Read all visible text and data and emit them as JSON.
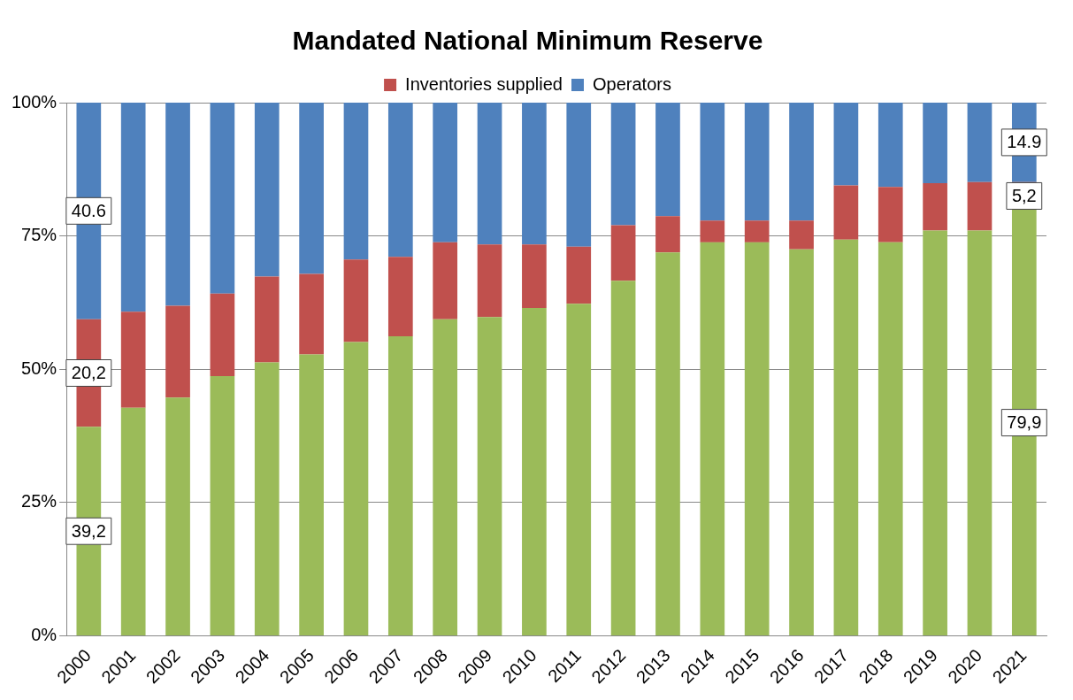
{
  "chart_data": {
    "type": "bar",
    "title": "Mandated National Minimum Reserve",
    "stacked": true,
    "legend": "top",
    "grid": "y",
    "categories": [
      "2000",
      "2001",
      "2002",
      "2003",
      "2004",
      "2005",
      "2006",
      "2007",
      "2008",
      "2009",
      "2010",
      "2011",
      "2012",
      "2013",
      "2014",
      "2015",
      "2016",
      "2017",
      "2018",
      "2019",
      "2020",
      "2021"
    ],
    "ylim": [
      0,
      100
    ],
    "yticks": [
      {
        "value": 0,
        "label": "0%"
      },
      {
        "value": 25,
        "label": "25%"
      },
      {
        "value": 50,
        "label": "50%"
      },
      {
        "value": 75,
        "label": "75%"
      },
      {
        "value": 100,
        "label": "100%"
      }
    ],
    "series": [
      {
        "color": "#9bbb59",
        "values": [
          39.2,
          42.8,
          44.7,
          48.7,
          51.3,
          52.8,
          55.1,
          56.2,
          59.4,
          59.8,
          61.5,
          62.3,
          66.6,
          71.9,
          73.8,
          73.8,
          72.5,
          74.3,
          73.8,
          76,
          76,
          79.9
        ],
        "value_labels": [
          "39,2",
          null,
          null,
          null,
          null,
          null,
          null,
          null,
          null,
          null,
          null,
          null,
          null,
          null,
          null,
          null,
          null,
          null,
          null,
          null,
          null,
          "79,9"
        ]
      },
      {
        "name": "Inventories supplied",
        "color": "#c0504d",
        "values": [
          20.2,
          18.0,
          17.2,
          15.5,
          16.1,
          15.1,
          15.5,
          14.9,
          14.4,
          13.6,
          11.9,
          10.7,
          10.4,
          6.8,
          4.1,
          4.1,
          5.4,
          10.2,
          10.4,
          8.9,
          9.1,
          5.2
        ],
        "value_labels": [
          "20,2",
          null,
          null,
          null,
          null,
          null,
          null,
          null,
          null,
          null,
          null,
          null,
          null,
          null,
          null,
          null,
          null,
          null,
          null,
          null,
          null,
          "5,2"
        ]
      },
      {
        "name": "Operators",
        "color": "#4f81bd",
        "values": [
          40.6,
          39.2,
          38.1,
          35.8,
          32.6,
          32.1,
          29.4,
          28.9,
          26.2,
          26.6,
          26.6,
          27,
          23,
          21.3,
          22.1,
          22.1,
          22.1,
          15.5,
          15.8,
          15.1,
          14.9,
          14.9
        ],
        "value_labels": [
          "40.6",
          null,
          null,
          null,
          null,
          null,
          null,
          null,
          null,
          null,
          null,
          null,
          null,
          null,
          null,
          null,
          null,
          null,
          null,
          null,
          null,
          "14.9"
        ]
      }
    ]
  }
}
